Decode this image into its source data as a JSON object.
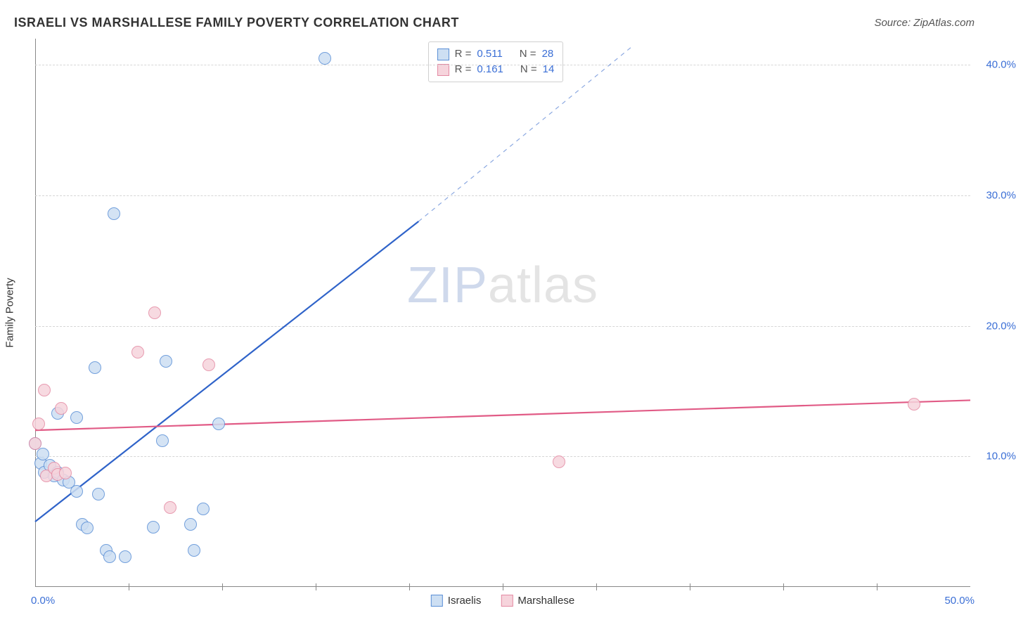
{
  "title": "ISRAELI VS MARSHALLESE FAMILY POVERTY CORRELATION CHART",
  "source": "Source: ZipAtlas.com",
  "yaxis_label": "Family Poverty",
  "watermark": {
    "part1": "ZIP",
    "part2": "atlas"
  },
  "chart": {
    "type": "scatter",
    "xlim": [
      0,
      50
    ],
    "ylim": [
      0,
      42
    ],
    "x_ticks_visible": [
      0,
      50
    ],
    "x_tick_labels": {
      "left": "0.0%",
      "right": "50.0%"
    },
    "x_minor_ticks": [
      5,
      10,
      15,
      20,
      25,
      30,
      35,
      40,
      45
    ],
    "y_ticks": [
      10,
      20,
      30,
      40
    ],
    "y_tick_labels": [
      "10.0%",
      "20.0%",
      "30.0%",
      "40.0%"
    ],
    "background_color": "#ffffff",
    "grid_color": "#d6d6d6",
    "axis_color": "#888888",
    "series": [
      {
        "name": "Israelis",
        "fill": "#cddff3",
        "stroke": "#5a8fd6",
        "marker_radius": 9,
        "trend": {
          "x1": 0,
          "y1": 5.0,
          "x2": 20.5,
          "y2": 28.0,
          "dash_x2": 32,
          "dash_y2": 41.5,
          "color": "#2f63c9",
          "width": 2.2
        },
        "points": [
          [
            0.0,
            11.0
          ],
          [
            0.3,
            9.5
          ],
          [
            0.4,
            10.2
          ],
          [
            0.5,
            8.8
          ],
          [
            0.8,
            9.3
          ],
          [
            1.0,
            8.5
          ],
          [
            1.2,
            13.3
          ],
          [
            1.2,
            8.8
          ],
          [
            1.5,
            8.2
          ],
          [
            1.8,
            8.0
          ],
          [
            2.2,
            7.3
          ],
          [
            2.2,
            13.0
          ],
          [
            2.5,
            4.8
          ],
          [
            2.8,
            4.5
          ],
          [
            3.2,
            16.8
          ],
          [
            3.4,
            7.1
          ],
          [
            3.8,
            2.8
          ],
          [
            4.0,
            2.3
          ],
          [
            4.2,
            28.6
          ],
          [
            4.8,
            2.3
          ],
          [
            6.3,
            4.6
          ],
          [
            6.8,
            11.2
          ],
          [
            7.0,
            17.3
          ],
          [
            8.3,
            4.8
          ],
          [
            8.5,
            2.8
          ],
          [
            9.0,
            6.0
          ],
          [
            9.8,
            12.5
          ],
          [
            15.5,
            40.5
          ]
        ]
      },
      {
        "name": "Marshallese",
        "fill": "#f6d4dc",
        "stroke": "#e48aa3",
        "marker_radius": 9,
        "trend": {
          "x1": 0,
          "y1": 12.0,
          "x2": 50,
          "y2": 14.3,
          "color": "#e15b86",
          "width": 2.2
        },
        "points": [
          [
            0.0,
            11.0
          ],
          [
            0.2,
            12.5
          ],
          [
            0.5,
            15.1
          ],
          [
            0.6,
            8.5
          ],
          [
            1.0,
            9.1
          ],
          [
            1.2,
            8.6
          ],
          [
            1.4,
            13.7
          ],
          [
            1.6,
            8.7
          ],
          [
            5.5,
            18.0
          ],
          [
            6.4,
            21.0
          ],
          [
            7.2,
            6.1
          ],
          [
            9.3,
            17.0
          ],
          [
            28.0,
            9.6
          ],
          [
            47.0,
            14.0
          ]
        ]
      }
    ]
  },
  "stats_box": {
    "rows": [
      {
        "swatch_fill": "#cddff3",
        "swatch_stroke": "#5a8fd6",
        "r_label": "R =",
        "r_value": "0.511",
        "n_label": "N =",
        "n_value": "28"
      },
      {
        "swatch_fill": "#f6d4dc",
        "swatch_stroke": "#e48aa3",
        "r_label": "R =",
        "r_value": "0.161",
        "n_label": "N =",
        "n_value": "14"
      }
    ]
  },
  "bottom_legend": [
    {
      "swatch_fill": "#cddff3",
      "swatch_stroke": "#5a8fd6",
      "label": "Israelis"
    },
    {
      "swatch_fill": "#f6d4dc",
      "swatch_stroke": "#e48aa3",
      "label": "Marshallese"
    }
  ]
}
